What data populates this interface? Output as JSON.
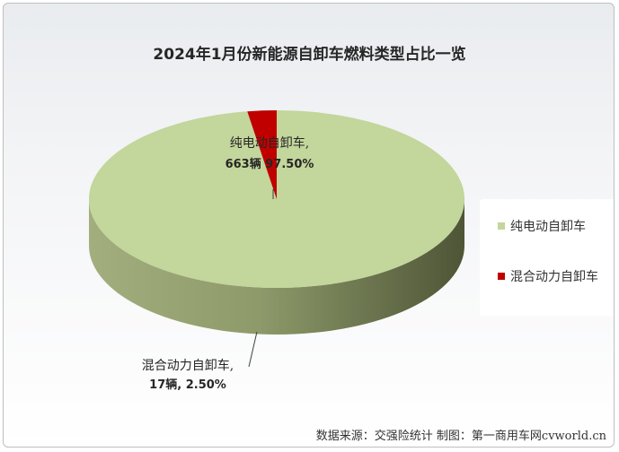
{
  "title": "2024年1月份新能源自卸车燃料类型占比一览",
  "source": "数据来源：交强险统计 制图：第一商用车网cvworld.cn",
  "legend": {
    "items": [
      {
        "label": "纯电动自卸车",
        "color": "#c3d69b"
      },
      {
        "label": "混合动力自卸车",
        "color": "#c00000"
      }
    ]
  },
  "chart_data": {
    "type": "pie",
    "style": "3d",
    "title": "2024年1月份新能源自卸车燃料类型占比一览",
    "legend_position": "right",
    "slices": [
      {
        "name": "纯电动自卸车",
        "value": 663,
        "percent": 97.5,
        "label_line1": "纯电动自卸车,",
        "label_line2": "663辆 97.50%",
        "color": "#c3d69b",
        "side_color": "#8f9e6c"
      },
      {
        "name": "混合动力自卸车",
        "value": 17,
        "percent": 2.5,
        "label_line1": "混合动力自卸车,",
        "label_line2": "17辆, 2.50%",
        "color": "#c00000",
        "side_color": "#6e0000"
      }
    ]
  }
}
